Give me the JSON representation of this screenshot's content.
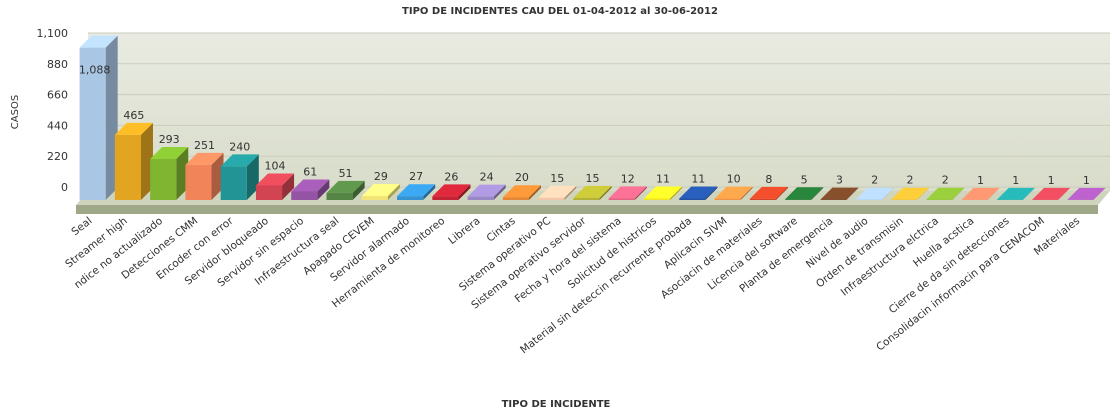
{
  "chart_data": {
    "type": "bar3d",
    "title": "TIPO DE INCIDENTES CAU DEL 01-04-2012 al 30-06-2012",
    "x_label": "TIPO DE INCIDENTE",
    "y_label": "CASOS",
    "categories": [
      "Seal",
      "Streamer high",
      "ndice no actualizado",
      "Detecciones CMM",
      "Encoder con error",
      "Servidor bloqueado",
      "Servidor sin espacio",
      "Infraestructura seal",
      "Apagado CEVEM",
      "Servidor alarmado",
      "Herramienta de monitoreo",
      "Librera",
      "Cintas",
      "Sistema operativo PC",
      "Sistema operativo servidor",
      "Fecha y hora del sistema",
      "Solicitud de histricos",
      "Material sin deteccin recurrente probada",
      "Aplicacin SIVM",
      "Asociacin de materiales",
      "Licencia del software",
      "Planta de emergencia",
      "Nivel de audio",
      "Orden de transmisin",
      "Infraestructura elctrica",
      "Huella acstica",
      "Cierre de da sin detecciones",
      "Consolidacin informacin para CENACOM",
      "Materiales"
    ],
    "values": [
      1088,
      465,
      293,
      251,
      240,
      104,
      61,
      51,
      29,
      27,
      26,
      24,
      20,
      15,
      15,
      12,
      11,
      11,
      10,
      8,
      5,
      3,
      2,
      2,
      2,
      1,
      1,
      1,
      1
    ],
    "value_labels": [
      "1,088",
      "465",
      "293",
      "251",
      "240",
      "104",
      "61",
      "51",
      "29",
      "27",
      "26",
      "24",
      "20",
      "15",
      "15",
      "12",
      "11",
      "11",
      "10",
      "8",
      "5",
      "3",
      "2",
      "2",
      "2",
      "1",
      "1",
      "1",
      "1"
    ],
    "colors": [
      "#a9c6e4",
      "#e3a521",
      "#7fb531",
      "#f2845a",
      "#229495",
      "#d24452",
      "#9553a4",
      "#548544",
      "#f2e477",
      "#3393d3",
      "#c42335",
      "#9a87c6",
      "#e58633",
      "#f3c4a6",
      "#b4b232",
      "#e46383",
      "#f1e224",
      "#2453a4",
      "#f29344",
      "#d54426",
      "#237534",
      "#754525",
      "#a6c4e4",
      "#e3b433",
      "#85b533",
      "#f28564",
      "#23a3a3",
      "#d44455",
      "#a555b5"
    ],
    "ylim": [
      0,
      1100
    ],
    "yticks": [
      0,
      220,
      440,
      660,
      880,
      {
        "value": 1100,
        "label": "1,100"
      }
    ],
    "grid": true
  }
}
